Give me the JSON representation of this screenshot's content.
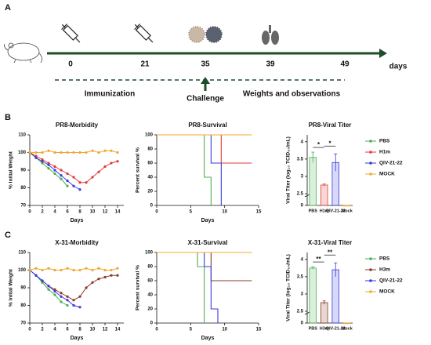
{
  "panels": [
    "A",
    "B",
    "C"
  ],
  "timeline": {
    "ticks": [
      0,
      21,
      35,
      39,
      49
    ],
    "unit": "days",
    "phases": [
      "Immunization",
      "Challenge",
      "Weights and observations"
    ]
  },
  "chart_data": [
    {
      "type": "line",
      "title": "PR8-Morbidity",
      "ylabel": "% Initial Weight",
      "xlabel": "Days",
      "x": [
        0,
        1,
        2,
        3,
        4,
        5,
        6,
        7,
        8,
        9,
        10,
        11,
        12,
        13,
        14
      ],
      "xlim": [
        0,
        15
      ],
      "xticks": [
        0,
        2,
        4,
        6,
        8,
        10,
        12,
        14
      ],
      "ylim": [
        70,
        110
      ],
      "yticks": [
        70,
        80,
        90,
        100,
        110
      ],
      "series": [
        {
          "color": "#4caf50",
          "values": [
            100,
            97,
            94,
            91,
            88,
            85,
            81,
            null,
            null,
            null,
            null,
            null,
            null,
            null,
            null
          ]
        },
        {
          "color": "#e53935",
          "values": [
            100,
            98,
            96,
            94,
            92,
            90,
            88,
            86,
            83,
            83,
            86,
            89,
            92,
            94,
            95
          ]
        },
        {
          "color": "#3a3adf",
          "values": [
            100,
            97,
            95,
            93,
            90,
            87,
            84,
            81,
            79,
            null,
            null,
            null,
            null,
            null,
            null
          ]
        },
        {
          "color": "#f0a830",
          "values": [
            100,
            100,
            100,
            101,
            100,
            100,
            100,
            100,
            100,
            100,
            101,
            100,
            101,
            101,
            100
          ]
        }
      ]
    },
    {
      "type": "step",
      "title": "PR8-Survival",
      "ylabel": "Percent survival %",
      "xlabel": "Days",
      "xlim": [
        0,
        15
      ],
      "xticks": [
        0,
        5,
        10,
        15
      ],
      "ylim": [
        0,
        100
      ],
      "yticks": [
        0,
        20,
        40,
        60,
        80,
        100
      ],
      "series": [
        {
          "color": "#4caf50",
          "x": [
            0,
            7,
            8
          ],
          "values": [
            100,
            40,
            0
          ]
        },
        {
          "color": "#e53935",
          "x": [
            0,
            9.5,
            14
          ],
          "values": [
            100,
            60,
            60
          ]
        },
        {
          "color": "#3a3adf",
          "x": [
            0,
            8,
            9.5
          ],
          "values": [
            100,
            60,
            0
          ]
        },
        {
          "color": "#f0a830",
          "x": [
            0,
            14
          ],
          "values": [
            100,
            100
          ]
        }
      ]
    },
    {
      "type": "bar",
      "title": "PR8-Viral Titer",
      "ylabel": "Viral Titer (log₁₀ TCID₅₀/mL)",
      "categories": [
        "PBS",
        "H1m",
        "QIV-21-22",
        "Mock"
      ],
      "values": [
        3.55,
        2.75,
        3.4,
        0
      ],
      "errors": [
        0.15,
        0.03,
        0.25,
        0
      ],
      "colors": [
        "#4caf50",
        "#e53935",
        "#3a3adf",
        "#f0a830"
      ],
      "ylim": [
        0,
        4.2
      ],
      "axis_break": [
        0.5,
        2.5
      ],
      "yticks": [
        0,
        2.5,
        3.0,
        3.5,
        4.0
      ],
      "annotations": [
        "*",
        "*"
      ],
      "legend": [
        "PBS",
        "H1m",
        "QIV-21-22",
        "MOCK"
      ]
    },
    {
      "type": "line",
      "title": "X-31-Morbidity",
      "ylabel": "% Initial Weight",
      "xlabel": "Days",
      "x": [
        0,
        1,
        2,
        3,
        4,
        5,
        6,
        7,
        8,
        9,
        10,
        11,
        12,
        13,
        14
      ],
      "xlim": [
        0,
        15
      ],
      "xticks": [
        0,
        2,
        4,
        6,
        8,
        10,
        12,
        14
      ],
      "ylim": [
        70,
        110
      ],
      "yticks": [
        70,
        80,
        90,
        100,
        110
      ],
      "series": [
        {
          "color": "#4caf50",
          "values": [
            100,
            97,
            93,
            89,
            86,
            82,
            80,
            null,
            null,
            null,
            null,
            null,
            null,
            null,
            null
          ]
        },
        {
          "color": "#8b3a2a",
          "values": [
            100,
            97,
            94,
            91,
            89,
            87,
            85,
            83,
            85,
            90,
            93,
            95,
            96,
            97,
            97
          ]
        },
        {
          "color": "#3a3adf",
          "values": [
            100,
            97,
            94,
            91,
            88,
            85,
            83,
            80,
            79,
            null,
            null,
            null,
            null,
            null,
            null
          ]
        },
        {
          "color": "#f0a830",
          "values": [
            100,
            101,
            100,
            101,
            100,
            100,
            101,
            100,
            100,
            101,
            100,
            101,
            100,
            100,
            101
          ]
        }
      ]
    },
    {
      "type": "step",
      "title": "X-31-Survival",
      "ylabel": "Percent survival %",
      "xlabel": "Days",
      "xlim": [
        0,
        15
      ],
      "xticks": [
        0,
        5,
        10,
        15
      ],
      "ylim": [
        0,
        100
      ],
      "yticks": [
        0,
        20,
        40,
        60,
        80,
        100
      ],
      "series": [
        {
          "color": "#4caf50",
          "x": [
            0,
            6,
            7
          ],
          "values": [
            100,
            80,
            0
          ]
        },
        {
          "color": "#8b3a2a",
          "x": [
            0,
            8,
            14
          ],
          "values": [
            100,
            60,
            60
          ]
        },
        {
          "color": "#3a3adf",
          "x": [
            0,
            7,
            8,
            9
          ],
          "values": [
            100,
            80,
            20,
            0
          ]
        },
        {
          "color": "#f0a830",
          "x": [
            0,
            14
          ],
          "values": [
            100,
            100
          ]
        }
      ]
    },
    {
      "type": "bar",
      "title": "X-31-Viral Titer",
      "ylabel": "Viral Titer (log₁₀ TCID₅₀/mL)",
      "categories": [
        "PBS",
        "H3m",
        "QIV-21-22",
        "Mock"
      ],
      "values": [
        3.75,
        2.75,
        3.7,
        0
      ],
      "errors": [
        0.04,
        0.05,
        0.2,
        0
      ],
      "colors": [
        "#4caf50",
        "#8b3a2a",
        "#3a3adf",
        "#f0a830"
      ],
      "ylim": [
        0,
        4.2
      ],
      "axis_break": [
        0.5,
        2.5
      ],
      "yticks": [
        0,
        2.5,
        3.0,
        3.5,
        4.0
      ],
      "annotations": [
        "**",
        "**"
      ],
      "legend": [
        "PBS",
        "H3m",
        "QIV-21-22",
        "MOCK"
      ]
    }
  ]
}
